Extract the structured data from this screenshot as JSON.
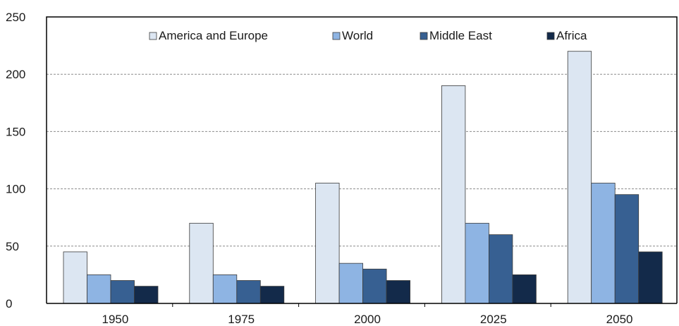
{
  "chart_data": {
    "type": "bar",
    "categories": [
      "1950",
      "1975",
      "2000",
      "2025",
      "2050"
    ],
    "series": [
      {
        "name": "America and Europe",
        "values": [
          45,
          70,
          105,
          190,
          220
        ],
        "color": "#dce6f2"
      },
      {
        "name": "World",
        "values": [
          25,
          25,
          35,
          70,
          105
        ],
        "color": "#8eb4e3"
      },
      {
        "name": "Middle East",
        "values": [
          20,
          20,
          30,
          60,
          95
        ],
        "color": "#376092"
      },
      {
        "name": "Africa",
        "values": [
          15,
          15,
          20,
          25,
          45
        ],
        "color": "#132a4a"
      }
    ],
    "yticks": [
      "0",
      "50",
      "100",
      "150",
      "200",
      "250"
    ],
    "ylim": [
      0,
      250
    ],
    "title": "",
    "xlabel": "",
    "ylabel": "",
    "grid": "horizontal dashed",
    "legend_position": "top"
  }
}
